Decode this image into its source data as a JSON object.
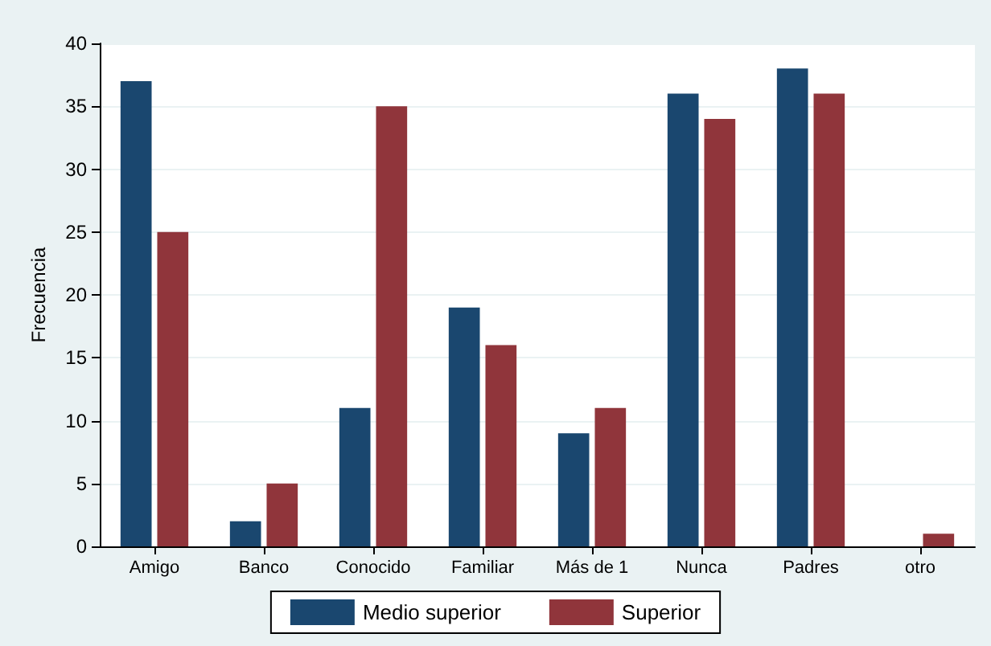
{
  "chart_data": {
    "type": "bar",
    "ylabel": "Frecuencia",
    "categories": [
      "Amigo",
      "Banco",
      "Conocido",
      "Familiar",
      "Más de 1",
      "Nunca",
      "Padres",
      "otro"
    ],
    "series": [
      {
        "name": "Medio superior",
        "color": "#1a476f",
        "values": [
          37,
          2,
          11,
          19,
          9,
          36,
          38,
          null
        ]
      },
      {
        "name": "Superior",
        "color": "#90353b",
        "values": [
          25,
          5,
          35,
          16,
          11,
          34,
          36,
          1
        ]
      }
    ],
    "ylim": [
      0,
      40
    ],
    "yticks": [
      0,
      5,
      10,
      15,
      20,
      25,
      30,
      35,
      40
    ],
    "grid": "y",
    "legend": "bottom"
  }
}
